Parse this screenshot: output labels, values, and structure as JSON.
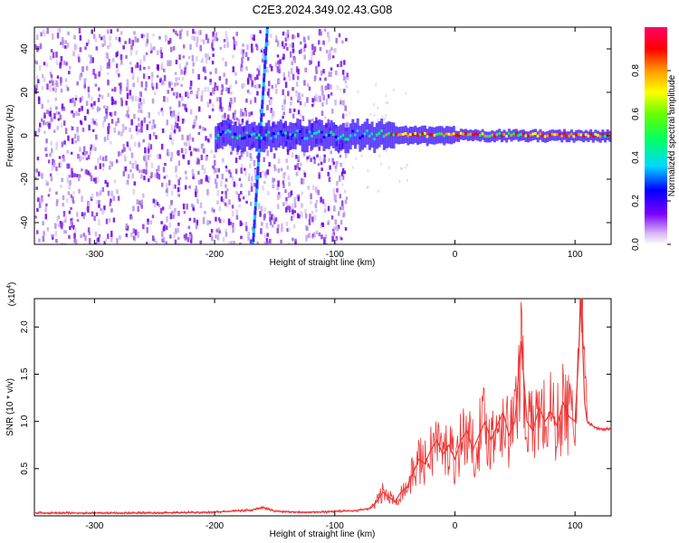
{
  "title": "C2E3.2024.349.02.43.G08",
  "chart_data": [
    {
      "type": "heatmap",
      "xlabel": "Height of straight line (km)",
      "ylabel": "Frequency (Hz)",
      "xlim": [
        -350,
        130
      ],
      "ylim": [
        -50,
        50
      ],
      "xticks": [
        -300,
        -200,
        -100,
        0,
        100
      ],
      "yticks": [
        -40,
        -20,
        0,
        20,
        40
      ],
      "colorbar": {
        "label": "Normalized spectral amplitude",
        "range": [
          0,
          1
        ],
        "ticks": [
          "0.0",
          "0.2",
          "0.4",
          "0.6",
          "0.8"
        ]
      },
      "features": {
        "noise_region_x": [
          -350,
          -100
        ],
        "near_vertical_line_x": [
          -168,
          -156
        ],
        "carrier_frequency_hz": 0
      }
    },
    {
      "type": "line",
      "xlabel": "Height of straight line (km)",
      "ylabel": "SNR (10 * v/v)",
      "scale_label": "(x10",
      "scale_exponent": "4",
      "xlim": [
        -350,
        130
      ],
      "ylim": [
        0,
        2.3
      ],
      "xticks": [
        -300,
        -200,
        -100,
        0,
        100
      ],
      "yticks": [
        "0.5",
        "1.0",
        "1.5",
        "2.0"
      ],
      "series": [
        {
          "color": "#ee3333",
          "x": [
            -350,
            -300,
            -250,
            -200,
            -170,
            -160,
            -150,
            -130,
            -110,
            -100,
            -90,
            -80,
            -70,
            -65,
            -60,
            -55,
            -50,
            -45,
            -40,
            -35,
            -30,
            -25,
            -20,
            -15,
            -10,
            -5,
            0,
            5,
            10,
            15,
            20,
            25,
            30,
            35,
            40,
            45,
            50,
            55,
            60,
            65,
            70,
            75,
            80,
            85,
            90,
            95,
            100,
            103,
            105,
            108,
            110,
            115,
            120,
            130
          ],
          "y": [
            0.03,
            0.03,
            0.03,
            0.04,
            0.06,
            0.09,
            0.05,
            0.04,
            0.04,
            0.05,
            0.05,
            0.06,
            0.08,
            0.15,
            0.25,
            0.2,
            0.15,
            0.25,
            0.3,
            0.45,
            0.6,
            0.55,
            0.7,
            0.8,
            0.65,
            0.75,
            0.6,
            0.8,
            0.9,
            0.7,
            0.85,
            1.0,
            0.8,
            0.95,
            1.1,
            0.85,
            1.0,
            1.85,
            1.0,
            0.9,
            1.15,
            1.0,
            1.1,
            0.95,
            1.2,
            1.05,
            1.0,
            1.7,
            2.3,
            1.2,
            1.0,
            0.95,
            0.92,
            0.92
          ]
        }
      ]
    }
  ]
}
